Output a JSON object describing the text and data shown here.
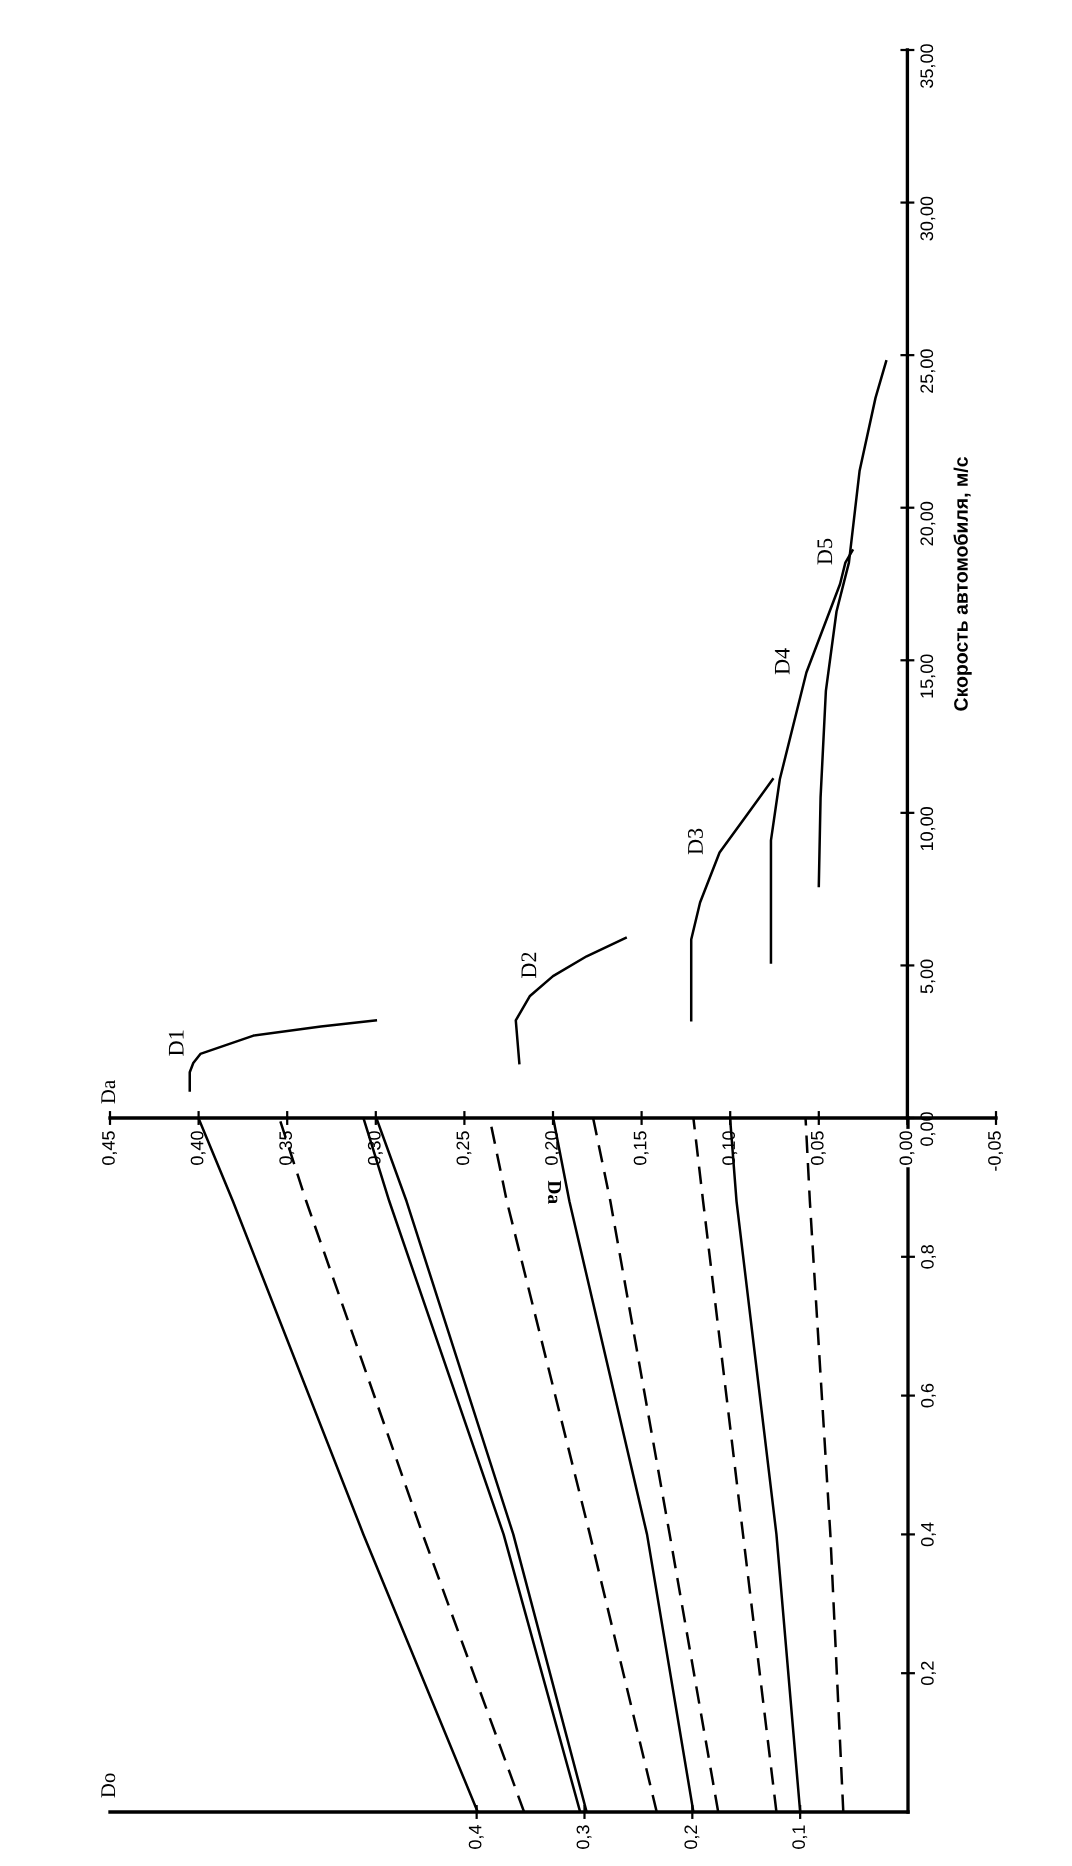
{
  "chart_data": [
    {
      "type": "line",
      "ylabel": "Скорость автомобиля, м/с",
      "ylim": [
        0,
        35
      ],
      "xlim": [
        0.45,
        -0.05
      ],
      "grid": false,
      "legend": false,
      "yticks": [
        {
          "value": 0,
          "label": "0,00"
        },
        {
          "value": 5,
          "label": "5,00"
        },
        {
          "value": 10,
          "label": "10,00"
        },
        {
          "value": 15,
          "label": "15,00"
        },
        {
          "value": 20,
          "label": "20,00"
        },
        {
          "value": 25,
          "label": "25,00"
        },
        {
          "value": 30,
          "label": "30,00"
        },
        {
          "value": 35,
          "label": "35,00"
        }
      ],
      "xticks": [
        {
          "value": -0.05,
          "label": "-0,05"
        },
        {
          "value": 0,
          "label": "0,00"
        },
        {
          "value": 0.05,
          "label": "0,05"
        },
        {
          "value": 0.1,
          "label": "0,10"
        },
        {
          "value": 0.15,
          "label": "0,15"
        },
        {
          "value": 0.2,
          "label": "0,20"
        },
        {
          "value": 0.25,
          "label": "0,25"
        },
        {
          "value": 0.3,
          "label": "0,30"
        },
        {
          "value": 0.35,
          "label": "0,35"
        },
        {
          "value": 0.4,
          "label": "0,40"
        },
        {
          "value": 0.45,
          "label": "0,45"
        }
      ],
      "marker": "none",
      "series": [
        {
          "name": "D1",
          "color": "#000000",
          "line_style": "solid",
          "x": [
            0.405,
            0.405,
            0.403,
            0.399,
            0.369,
            0.331,
            0.3
          ],
          "values": [
            0.9,
            1.5,
            1.8,
            2.1,
            2.7,
            3.0,
            3.2
          ]
        },
        {
          "name": "D2",
          "color": "#000000",
          "line_style": "solid",
          "x": [
            0.219,
            0.221,
            0.213,
            0.2,
            0.181,
            0.159
          ],
          "values": [
            1.8,
            3.2,
            4.0,
            4.65,
            5.3,
            5.9
          ]
        },
        {
          "name": "D3",
          "color": "#000000",
          "line_style": "solid",
          "x": [
            0.122,
            0.122,
            0.117,
            0.106,
            0.091,
            0.076
          ],
          "values": [
            3.2,
            5.85,
            7.06,
            8.7,
            9.9,
            11.1
          ]
        },
        {
          "name": "D4",
          "color": "#000000",
          "line_style": "solid",
          "x": [
            0.077,
            0.077,
            0.072,
            0.057,
            0.038,
            0.035,
            0.031
          ],
          "values": [
            5.1,
            9.1,
            11.1,
            14.6,
            17.5,
            18.2,
            18.6
          ]
        },
        {
          "name": "D5",
          "color": "#000000",
          "line_style": "solid",
          "x": [
            0.05,
            0.049,
            0.046,
            0.04,
            0.033,
            0.027,
            0.018,
            0.012
          ],
          "values": [
            7.6,
            10.5,
            14.0,
            16.6,
            18.2,
            21.2,
            23.6,
            24.8
          ]
        }
      ],
      "annotations": [
        "Da"
      ]
    },
    {
      "type": "line",
      "ylim": [
        0,
        1
      ],
      "xlim": [
        0.74,
        0
      ],
      "grid": false,
      "yticks": [
        {
          "value": 0.2,
          "label": "0,2"
        },
        {
          "value": 0.4,
          "label": "0,4"
        },
        {
          "value": 0.6,
          "label": "0,6"
        },
        {
          "value": 0.8,
          "label": "0,8"
        }
      ],
      "xticks": [
        {
          "value": 0.1,
          "label": "0,1"
        },
        {
          "value": 0.2,
          "label": "0,2"
        },
        {
          "value": 0.3,
          "label": "0,3"
        },
        {
          "value": 0.4,
          "label": "0,4"
        }
      ],
      "marker": "none",
      "series": [
        {
          "color": "#000000",
          "line_style": "solid",
          "x": [
            0.399,
            0.505,
            0.626,
            0.658
          ],
          "values": [
            0,
            0.4,
            0.88,
            1
          ]
        },
        {
          "color": "#000000",
          "line_style": "dashed",
          "x": [
            0.356,
            0.45,
            0.558,
            0.583
          ],
          "values": [
            0,
            0.4,
            0.88,
            1
          ]
        },
        {
          "color": "#000000",
          "line_style": "solid",
          "x": [
            0.304,
            0.375,
            0.481,
            0.505
          ],
          "values": [
            0,
            0.4,
            0.88,
            1
          ]
        },
        {
          "color": "#000000",
          "line_style": "solid",
          "x": [
            0.298,
            0.366,
            0.465,
            0.493
          ],
          "values": [
            0,
            0.4,
            0.88,
            1
          ]
        },
        {
          "color": "#000000",
          "line_style": "dashed",
          "x": [
            0.233,
            0.295,
            0.372,
            0.388
          ],
          "values": [
            0,
            0.4,
            0.88,
            1
          ]
        },
        {
          "color": "#000000",
          "line_style": "solid",
          "x": [
            0.199,
            0.242,
            0.314,
            0.329
          ],
          "values": [
            0,
            0.4,
            0.88,
            1
          ]
        },
        {
          "color": "#000000",
          "line_style": "dashed",
          "x": [
            0.176,
            0.221,
            0.276,
            0.292
          ],
          "values": [
            0,
            0.4,
            0.88,
            1
          ]
        },
        {
          "color": "#000000",
          "line_style": "dashed",
          "x": [
            0.122,
            0.153,
            0.19,
            0.199
          ],
          "values": [
            0,
            0.4,
            0.88,
            1
          ]
        },
        {
          "color": "#000000",
          "line_style": "solid",
          "x": [
            0.1,
            0.122,
            0.159,
            0.165
          ],
          "values": [
            0,
            0.4,
            0.88,
            1
          ]
        },
        {
          "color": "#000000",
          "line_style": "dashed",
          "x": [
            0.06,
            0.072,
            0.091,
            0.095
          ],
          "values": [
            0,
            0.4,
            0.88,
            1
          ]
        }
      ],
      "annotations": [
        "Do",
        "Da"
      ]
    }
  ]
}
